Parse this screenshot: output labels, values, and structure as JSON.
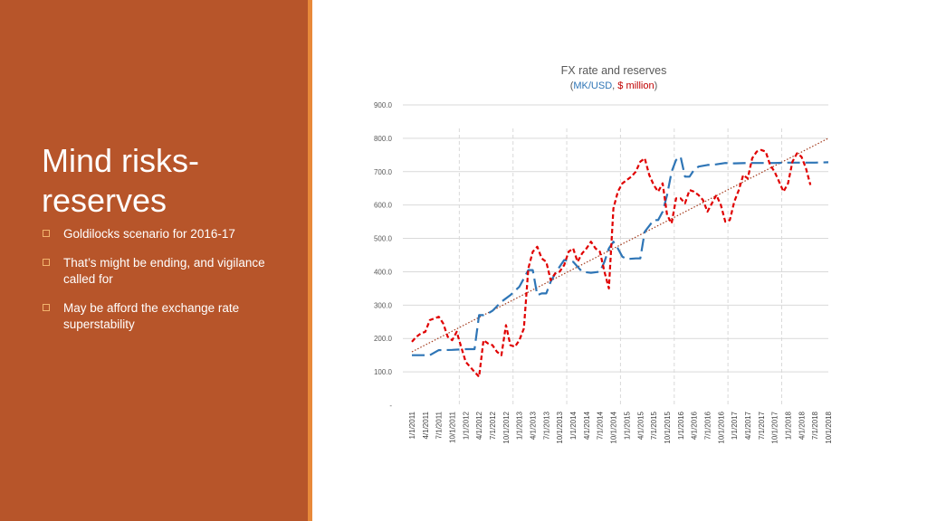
{
  "slide": {
    "title": "Mind risks-reserves",
    "bullets": [
      "Goldilocks scenario for 2016-17",
      "That’s might be ending, and vigilance called for",
      "May be afford the exchange rate superstability"
    ],
    "colors": {
      "panel": "#b7552a",
      "accent": "#e8893a",
      "bullet_box": "#f2b36d"
    }
  },
  "chart_data": {
    "type": "line",
    "title": "FX rate and reserves",
    "subtitle": {
      "open": "(",
      "mk_usd": "MK/USD",
      "sep": ", ",
      "usd_million": "$ million",
      "close": ")"
    },
    "y_ticks": [
      "-",
      "100.0",
      "200.0",
      "300.0",
      "400.0",
      "500.0",
      "600.0",
      "700.0",
      "800.0",
      "900.0"
    ],
    "ylim": [
      0,
      900
    ],
    "x_ticks": [
      "1/1/2011",
      "4/1/2011",
      "7/1/2011",
      "10/1/2011",
      "1/1/2012",
      "4/1/2012",
      "7/1/2012",
      "10/1/2012",
      "1/1/2013",
      "4/1/2013",
      "7/1/2013",
      "10/1/2013",
      "1/1/2014",
      "4/1/2014",
      "7/1/2014",
      "10/1/2014",
      "1/1/2015",
      "4/1/2015",
      "7/1/2015",
      "10/1/2015",
      "1/1/2016",
      "4/1/2016",
      "7/1/2016",
      "10/1/2016",
      "1/1/2017",
      "4/1/2017",
      "7/1/2017",
      "10/1/2017",
      "1/1/2018",
      "4/1/2018",
      "7/1/2018",
      "10/1/2018"
    ],
    "x_range": [
      "2011-01",
      "2018-10"
    ],
    "grid": true,
    "series": [
      {
        "key": "fx",
        "color": "#2e75b6",
        "style": "long-dash",
        "points": [
          [
            "2011-01",
            150
          ],
          [
            "2011-05",
            150
          ],
          [
            "2011-07",
            165
          ],
          [
            "2011-10",
            166
          ],
          [
            "2012-01",
            168
          ],
          [
            "2012-03",
            168
          ],
          [
            "2012-04",
            270
          ],
          [
            "2012-05",
            270
          ],
          [
            "2012-06",
            275
          ],
          [
            "2012-07",
            283
          ],
          [
            "2012-09",
            310
          ],
          [
            "2012-11",
            330
          ],
          [
            "2013-01",
            355
          ],
          [
            "2013-02",
            380
          ],
          [
            "2013-03",
            405
          ],
          [
            "2013-04",
            405
          ],
          [
            "2013-05",
            330
          ],
          [
            "2013-06",
            335
          ],
          [
            "2013-07",
            335
          ],
          [
            "2013-08",
            370
          ],
          [
            "2013-09",
            395
          ],
          [
            "2013-10",
            415
          ],
          [
            "2013-11",
            435
          ],
          [
            "2014-01",
            430
          ],
          [
            "2014-02",
            415
          ],
          [
            "2014-03",
            400
          ],
          [
            "2014-05",
            397
          ],
          [
            "2014-07",
            400
          ],
          [
            "2014-08",
            430
          ],
          [
            "2014-09",
            470
          ],
          [
            "2014-10",
            490
          ],
          [
            "2014-11",
            470
          ],
          [
            "2014-12",
            445
          ],
          [
            "2015-01",
            438
          ],
          [
            "2015-03",
            440
          ],
          [
            "2015-04",
            440
          ],
          [
            "2015-05",
            520
          ],
          [
            "2015-07",
            555
          ],
          [
            "2015-08",
            555
          ],
          [
            "2015-09",
            580
          ],
          [
            "2015-10",
            630
          ],
          [
            "2015-11",
            700
          ],
          [
            "2015-12",
            735
          ],
          [
            "2016-01",
            745
          ],
          [
            "2016-02",
            685
          ],
          [
            "2016-03",
            685
          ],
          [
            "2016-04",
            705
          ],
          [
            "2016-05",
            715
          ],
          [
            "2016-07",
            720
          ],
          [
            "2016-09",
            722
          ],
          [
            "2016-11",
            726
          ],
          [
            "2017-01",
            725
          ],
          [
            "2017-04",
            726
          ],
          [
            "2017-07",
            726
          ],
          [
            "2017-10",
            726
          ],
          [
            "2018-01",
            727
          ],
          [
            "2018-04",
            727
          ],
          [
            "2018-07",
            727
          ],
          [
            "2018-10",
            728
          ]
        ]
      },
      {
        "key": "reserves",
        "color": "#e00000",
        "style": "short-dash",
        "points": [
          [
            "2011-01",
            190
          ],
          [
            "2011-02",
            205
          ],
          [
            "2011-03",
            215
          ],
          [
            "2011-04",
            220
          ],
          [
            "2011-05",
            255
          ],
          [
            "2011-06",
            260
          ],
          [
            "2011-07",
            265
          ],
          [
            "2011-08",
            245
          ],
          [
            "2011-09",
            205
          ],
          [
            "2011-10",
            195
          ],
          [
            "2011-11",
            220
          ],
          [
            "2011-12",
            175
          ],
          [
            "2012-01",
            130
          ],
          [
            "2012-02",
            115
          ],
          [
            "2012-03",
            100
          ],
          [
            "2012-04",
            85
          ],
          [
            "2012-05",
            195
          ],
          [
            "2012-06",
            185
          ],
          [
            "2012-07",
            180
          ],
          [
            "2012-08",
            160
          ],
          [
            "2012-09",
            150
          ],
          [
            "2012-10",
            240
          ],
          [
            "2012-11",
            180
          ],
          [
            "2012-12",
            175
          ],
          [
            "2013-01",
            195
          ],
          [
            "2013-02",
            230
          ],
          [
            "2013-03",
            410
          ],
          [
            "2013-04",
            460
          ],
          [
            "2013-05",
            475
          ],
          [
            "2013-06",
            440
          ],
          [
            "2013-07",
            430
          ],
          [
            "2013-08",
            375
          ],
          [
            "2013-09",
            395
          ],
          [
            "2013-10",
            400
          ],
          [
            "2013-11",
            420
          ],
          [
            "2013-12",
            460
          ],
          [
            "2014-01",
            470
          ],
          [
            "2014-02",
            430
          ],
          [
            "2014-03",
            455
          ],
          [
            "2014-04",
            470
          ],
          [
            "2014-05",
            490
          ],
          [
            "2014-06",
            470
          ],
          [
            "2014-07",
            460
          ],
          [
            "2014-08",
            400
          ],
          [
            "2014-09",
            350
          ],
          [
            "2014-10",
            590
          ],
          [
            "2014-11",
            640
          ],
          [
            "2014-12",
            665
          ],
          [
            "2015-01",
            675
          ],
          [
            "2015-02",
            685
          ],
          [
            "2015-03",
            700
          ],
          [
            "2015-04",
            730
          ],
          [
            "2015-05",
            740
          ],
          [
            "2015-06",
            690
          ],
          [
            "2015-07",
            660
          ],
          [
            "2015-08",
            640
          ],
          [
            "2015-09",
            665
          ],
          [
            "2015-10",
            570
          ],
          [
            "2015-11",
            545
          ],
          [
            "2015-12",
            620
          ],
          [
            "2016-01",
            620
          ],
          [
            "2016-02",
            605
          ],
          [
            "2016-03",
            645
          ],
          [
            "2016-04",
            640
          ],
          [
            "2016-05",
            630
          ],
          [
            "2016-06",
            615
          ],
          [
            "2016-07",
            580
          ],
          [
            "2016-08",
            605
          ],
          [
            "2016-09",
            630
          ],
          [
            "2016-10",
            600
          ],
          [
            "2016-11",
            550
          ],
          [
            "2016-12",
            555
          ],
          [
            "2017-01",
            610
          ],
          [
            "2017-02",
            645
          ],
          [
            "2017-03",
            690
          ],
          [
            "2017-04",
            680
          ],
          [
            "2017-05",
            740
          ],
          [
            "2017-06",
            760
          ],
          [
            "2017-07",
            765
          ],
          [
            "2017-08",
            760
          ],
          [
            "2017-09",
            720
          ],
          [
            "2017-10",
            700
          ],
          [
            "2017-11",
            670
          ],
          [
            "2017-12",
            640
          ],
          [
            "2018-01",
            665
          ],
          [
            "2018-02",
            730
          ],
          [
            "2018-03",
            755
          ],
          [
            "2018-04",
            745
          ],
          [
            "2018-05",
            710
          ],
          [
            "2018-06",
            660
          ]
        ]
      }
    ],
    "trendline": {
      "color": "#a33a1c",
      "style": "dotted",
      "from": [
        "2011-01",
        160
      ],
      "to": [
        "2018-10",
        800
      ]
    }
  }
}
